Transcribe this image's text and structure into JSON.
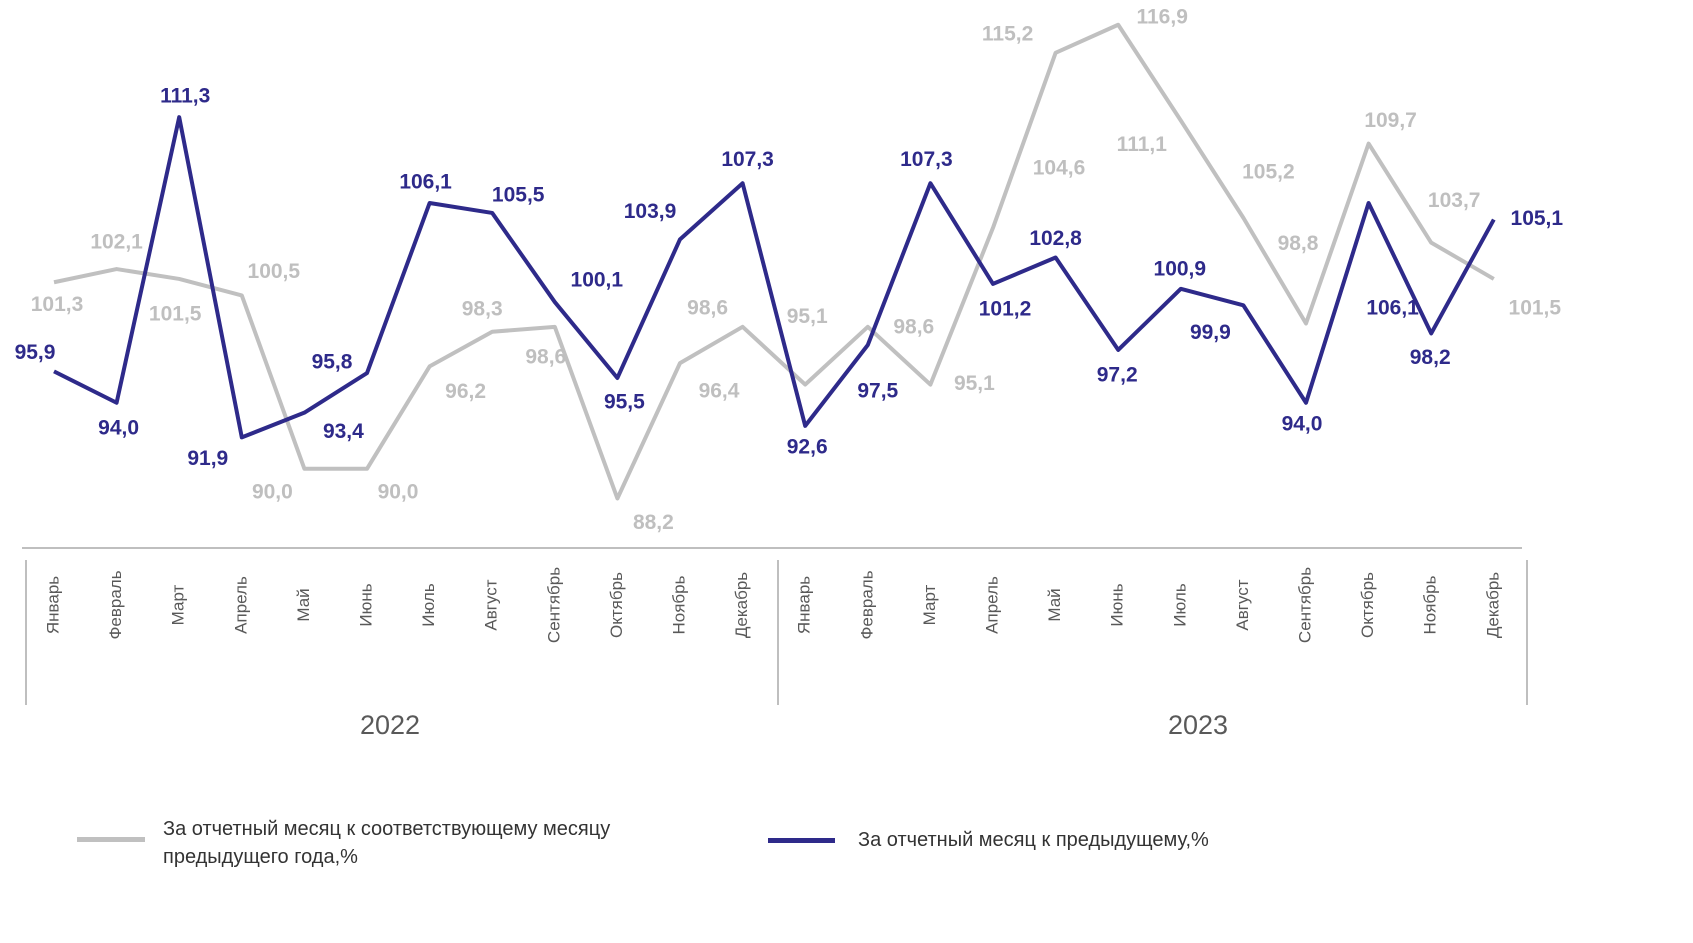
{
  "chart_data": {
    "type": "line",
    "categories": [
      "Январь",
      "Февраль",
      "Март",
      "Апрель",
      "Май",
      "Июнь",
      "Июль",
      "Август",
      "Сентябрь",
      "Октябрь",
      "Ноябрь",
      "Декабрь",
      "Январь",
      "Февраль",
      "Март",
      "Апрель",
      "Май",
      "Июнь",
      "Июль",
      "Август",
      "Сентябрь",
      "Октябрь",
      "Ноябрь",
      "Декабрь"
    ],
    "groups": [
      "2022",
      "2023"
    ],
    "ylim": [
      85.2,
      118.4
    ],
    "series": [
      {
        "name": "За отчетный месяц к соответствующему месяцу предыдущего года,%",
        "color": "#c0c0c0",
        "values": [
          101.3,
          102.1,
          101.5,
          100.5,
          90.0,
          90.0,
          96.2,
          98.3,
          98.6,
          88.2,
          96.4,
          98.6,
          95.1,
          98.6,
          95.1,
          104.6,
          115.2,
          116.9,
          111.1,
          105.2,
          98.8,
          109.7,
          103.7,
          101.5
        ],
        "value_labels": [
          "101,3",
          "102,1",
          "101,5",
          "100,5",
          "90,0",
          "90,0",
          "96,2",
          "98,3",
          "98,6",
          "88,2",
          "96,4",
          "98,6",
          "95,1",
          "98,6",
          "95,1",
          "104,6",
          "115,2",
          "116,9",
          "111,1",
          "105,2",
          "98,8",
          "109,7",
          "103,7",
          "101,5"
        ]
      },
      {
        "name": "За отчетный месяц к предыдущему,%",
        "color": "#2e2a8a",
        "values": [
          95.9,
          94.0,
          111.3,
          91.9,
          93.4,
          95.8,
          106.1,
          105.5,
          100.1,
          95.5,
          103.9,
          107.3,
          92.6,
          97.5,
          107.3,
          101.2,
          102.8,
          97.2,
          100.9,
          99.9,
          94.0,
          106.1,
          98.2,
          105.1
        ],
        "value_labels": [
          "95,9",
          "94,0",
          "111,3",
          "91,9",
          "93,4",
          "95,8",
          "106,1",
          "105,5",
          "100,1",
          "95,5",
          "103,9",
          "107,3",
          "92,6",
          "97,5",
          "107,3",
          "101,2",
          "102,8",
          "97,2",
          "100,9",
          "99,9",
          "94,0",
          "106,1",
          "98,2",
          "105,1"
        ]
      }
    ]
  }
}
